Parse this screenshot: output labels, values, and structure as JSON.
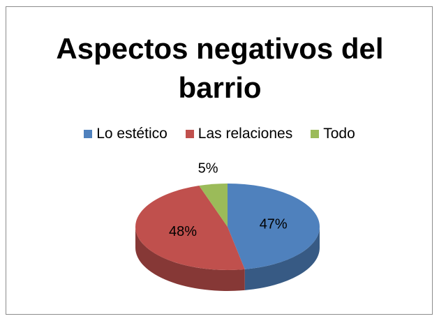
{
  "chart_data": {
    "type": "pie",
    "title": "Aspectos negativos del barrio",
    "categories": [
      "Lo estético",
      "Las relaciones",
      "Todo"
    ],
    "values": [
      47,
      48,
      5
    ],
    "value_labels": [
      "47%",
      "48%",
      "5%"
    ],
    "colors": [
      "#4f81bd",
      "#c0504d",
      "#9bbb59"
    ],
    "legend": "top"
  }
}
